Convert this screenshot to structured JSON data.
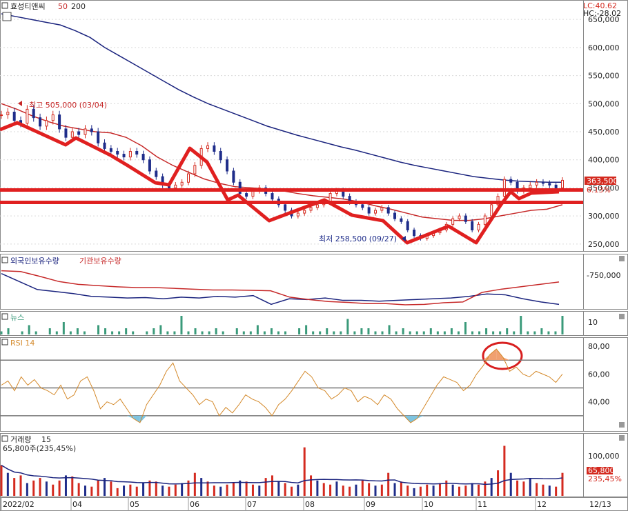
{
  "header": {
    "stock_name": "효성티앤씨",
    "ma_short": "50",
    "ma_long": "200",
    "lc": "LC:40.62",
    "hc": "HC:-28.02"
  },
  "colors": {
    "up": "#d42a1f",
    "down": "#1f2d8a",
    "ma200": "#1a237e",
    "ma50": "#c62828",
    "annotation": "#e02020",
    "rsi": "#d4892a",
    "news": "#3a9a7a",
    "grid": "#d9d9d9",
    "panel_border": "#888888"
  },
  "chart_data": [
    {
      "type": "line",
      "panel": "price",
      "title": "효성티앤씨",
      "y_ticks": [
        "650,000",
        "600,000",
        "550,000",
        "500,000",
        "450,000",
        "400,000",
        "350,000",
        "300,000",
        "250,000"
      ],
      "ylim": [
        240000,
        660000
      ],
      "x_ticks": [
        "2022/02",
        "04",
        "05",
        "06",
        "07",
        "08",
        "09",
        "10",
        "11",
        "12",
        "12/13"
      ],
      "high_label": "최고 505,000 (03/04)",
      "low_label": "최저 258,500 (09/27)",
      "last_price": "363,500",
      "last_change": "6.13%",
      "close": [
        480000,
        485000,
        470000,
        465000,
        490000,
        475000,
        460000,
        470000,
        480000,
        455000,
        440000,
        450000,
        445000,
        455000,
        450000,
        430000,
        420000,
        415000,
        410000,
        405000,
        415000,
        410000,
        400000,
        380000,
        370000,
        355000,
        350000,
        355000,
        360000,
        375000,
        390000,
        420000,
        425000,
        415000,
        400000,
        380000,
        360000,
        340000,
        335000,
        345000,
        350000,
        340000,
        330000,
        320000,
        310000,
        300000,
        305000,
        310000,
        315000,
        320000,
        325000,
        340000,
        345000,
        335000,
        325000,
        320000,
        315000,
        305000,
        310000,
        315000,
        305000,
        295000,
        290000,
        275000,
        265000,
        260000,
        265000,
        270000,
        275000,
        285000,
        295000,
        300000,
        290000,
        275000,
        285000,
        300000,
        320000,
        335000,
        365000,
        360000,
        345000,
        350000,
        355000,
        360000,
        358000,
        355000,
        350000,
        363500
      ],
      "series": [
        {
          "name": "200",
          "values": [
            660000,
            655000,
            650000,
            645000,
            640000,
            630000,
            618000,
            600000,
            585000,
            570000,
            555000,
            540000,
            525000,
            512000,
            500000,
            490000,
            480000,
            470000,
            460000,
            452000,
            444000,
            437000,
            430000,
            423000,
            417000,
            410000,
            403000,
            396000,
            390000,
            385000,
            380000,
            375000,
            370000,
            367000,
            364000,
            362000,
            361000,
            360000,
            360000
          ]
        },
        {
          "name": "50",
          "values": [
            500000,
            490000,
            478000,
            468000,
            460000,
            455000,
            450000,
            448000,
            440000,
            425000,
            405000,
            390000,
            378000,
            366000,
            358000,
            352000,
            350000,
            348000,
            345000,
            340000,
            336000,
            333000,
            330000,
            325000,
            318000,
            312000,
            305000,
            298000,
            295000,
            292000,
            292000,
            295000,
            300000,
            305000,
            310000,
            312000,
            320000
          ]
        }
      ]
    },
    {
      "type": "line",
      "panel": "holdings",
      "series": [
        {
          "name": "외국인보유수량",
          "values": [
            0.15,
            0.35,
            0.55,
            0.6,
            0.65,
            0.72,
            0.74,
            0.76,
            0.75,
            0.78,
            0.74,
            0.76,
            0.72,
            0.74,
            0.7,
            0.92,
            0.78,
            0.8,
            0.76,
            0.82,
            0.82,
            0.84,
            0.82,
            0.8,
            0.78,
            0.76,
            0.72,
            0.66,
            0.68,
            0.78,
            0.86,
            0.92
          ]
        },
        {
          "name": "기관보유수량",
          "values": [
            0.08,
            0.1,
            0.22,
            0.35,
            0.42,
            0.45,
            0.48,
            0.5,
            0.5,
            0.52,
            0.54,
            0.56,
            0.56,
            0.57,
            0.58,
            0.74,
            0.8,
            0.85,
            0.87,
            0.9,
            0.9,
            0.93,
            0.92,
            0.88,
            0.86,
            0.62,
            0.54,
            0.48,
            0.42,
            0.36
          ]
        }
      ],
      "y_tick": "-750,000"
    },
    {
      "type": "bar",
      "panel": "news",
      "title": "뉴스",
      "values": [
        1,
        2,
        0,
        1,
        3,
        1,
        0,
        2,
        1,
        4,
        1,
        2,
        1,
        0,
        3,
        2,
        1,
        1,
        2,
        1,
        0,
        1,
        2,
        3,
        1,
        1,
        6,
        1,
        2,
        1,
        1,
        2,
        1,
        0,
        2,
        1,
        1,
        3,
        1,
        2,
        1,
        1,
        0,
        2,
        3,
        1,
        1,
        2,
        1,
        1,
        5,
        1,
        2,
        2,
        1,
        1,
        3,
        1,
        2,
        1,
        1,
        1,
        2,
        1,
        1,
        2,
        1,
        4,
        1,
        1,
        2,
        1,
        1,
        2,
        1,
        6,
        1,
        1,
        2,
        1,
        1,
        6
      ],
      "y_tick": "10"
    },
    {
      "type": "line",
      "panel": "rsi",
      "title": "RSI 14",
      "y_ticks": [
        "80,00",
        "60,00",
        "40,00"
      ],
      "ylim": [
        20,
        85
      ],
      "levels": [
        70,
        50,
        30
      ],
      "values": [
        52,
        55,
        48,
        58,
        52,
        56,
        50,
        48,
        45,
        52,
        42,
        45,
        55,
        58,
        48,
        35,
        40,
        38,
        42,
        35,
        28,
        25,
        38,
        45,
        52,
        62,
        68,
        55,
        50,
        45,
        38,
        42,
        40,
        30,
        36,
        32,
        38,
        45,
        42,
        40,
        36,
        30,
        38,
        42,
        48,
        55,
        62,
        58,
        50,
        48,
        42,
        45,
        50,
        48,
        40,
        44,
        42,
        38,
        45,
        42,
        35,
        30,
        25,
        28,
        36,
        44,
        52,
        58,
        56,
        54,
        48,
        52,
        60,
        66,
        74,
        78,
        72,
        62,
        65,
        60,
        58,
        62,
        60,
        58,
        54,
        60
      ]
    },
    {
      "type": "bar",
      "panel": "volume",
      "title": "거래량 15",
      "volume_label": "65,800주(235,45%)",
      "y_tick": "100,000",
      "last_volume": "65,800",
      "last_volume_pct": "235,45%",
      "values": [
        60,
        45,
        35,
        40,
        25,
        30,
        35,
        28,
        22,
        30,
        40,
        38,
        25,
        20,
        18,
        30,
        35,
        28,
        15,
        20,
        22,
        18,
        25,
        30,
        28,
        20,
        18,
        22,
        25,
        30,
        45,
        35,
        28,
        20,
        18,
        22,
        25,
        30,
        28,
        22,
        20,
        35,
        40,
        28,
        25,
        18,
        22,
        95,
        40,
        30,
        25,
        22,
        28,
        20,
        18,
        22,
        30,
        25,
        20,
        22,
        45,
        25,
        28,
        20,
        15,
        18,
        22,
        20,
        25,
        30,
        22,
        18,
        20,
        25,
        22,
        28,
        35,
        50,
        98,
        45,
        30,
        28,
        35,
        25,
        22,
        20,
        18,
        45
      ]
    }
  ],
  "panels": {
    "holdings_label_foreign": "외국인보유수량",
    "holdings_label_inst": "기관보유수량",
    "news_label": "뉴스",
    "rsi_label": "RSI 14",
    "volume_label": "거래량",
    "volume_period": "15"
  }
}
